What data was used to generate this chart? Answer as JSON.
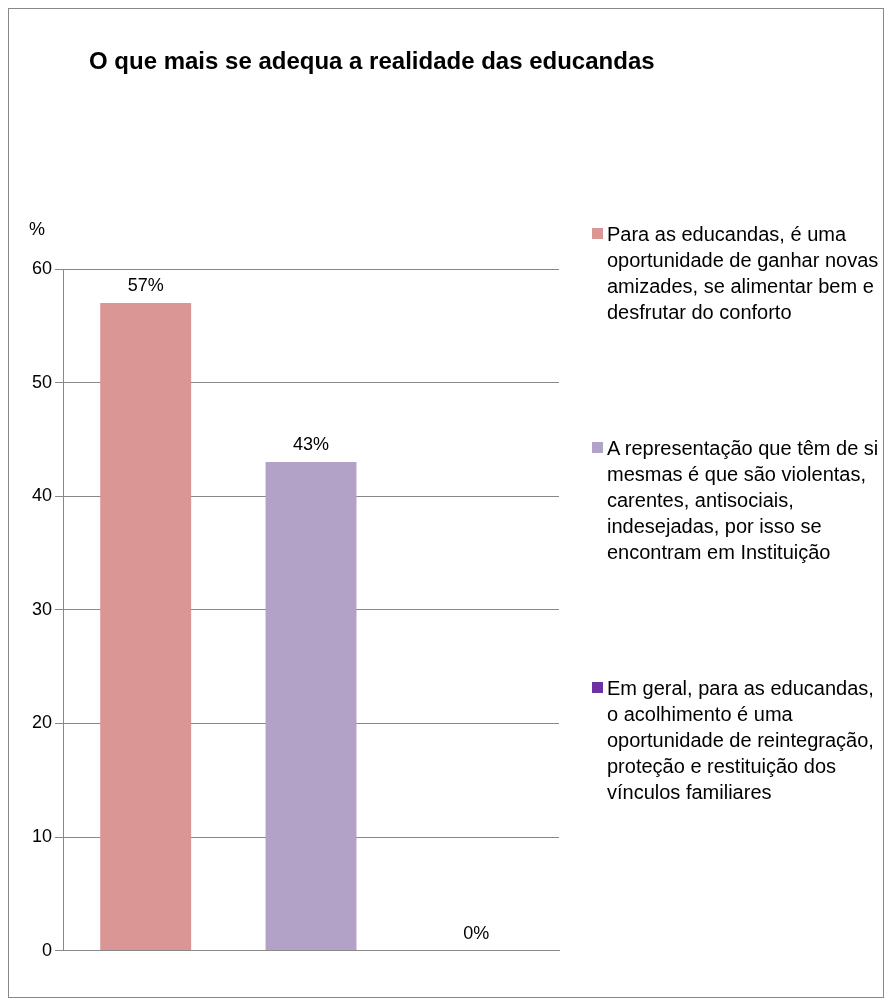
{
  "chart_data": {
    "type": "bar",
    "title": "O que mais se adequa a realidade das educandas",
    "ylabel": "%",
    "categories": [
      null,
      null,
      null
    ],
    "series": [
      {
        "name": "Para as educandas, é uma oportunidade de ganhar novas amizades, se alimentar bem e desfrutar do conforto",
        "color": "#d99694",
        "values": [
          57,
          null,
          null
        ],
        "value_labels": [
          "57%",
          null,
          null
        ]
      },
      {
        "name": "A representação que têm de si mesmas é que são violentas, carentes, antisociais, indesejadas, por isso se encontram em Instituição",
        "color": "#b3a2c7",
        "values": [
          null,
          43,
          null
        ],
        "value_labels": [
          null,
          "43%",
          null
        ]
      },
      {
        "name": "Em geral, para as educandas, o acolhimento é uma oportunidade de reintegração, proteção e restituição dos vínculos familiares",
        "color": "#7030a0",
        "values": [
          null,
          null,
          0
        ],
        "value_labels": [
          null,
          null,
          "0%"
        ]
      }
    ],
    "ylim": [
      0,
      60
    ],
    "yticks": [
      0,
      10,
      20,
      30,
      40,
      50,
      60
    ],
    "grid": "y",
    "legend": "right"
  }
}
